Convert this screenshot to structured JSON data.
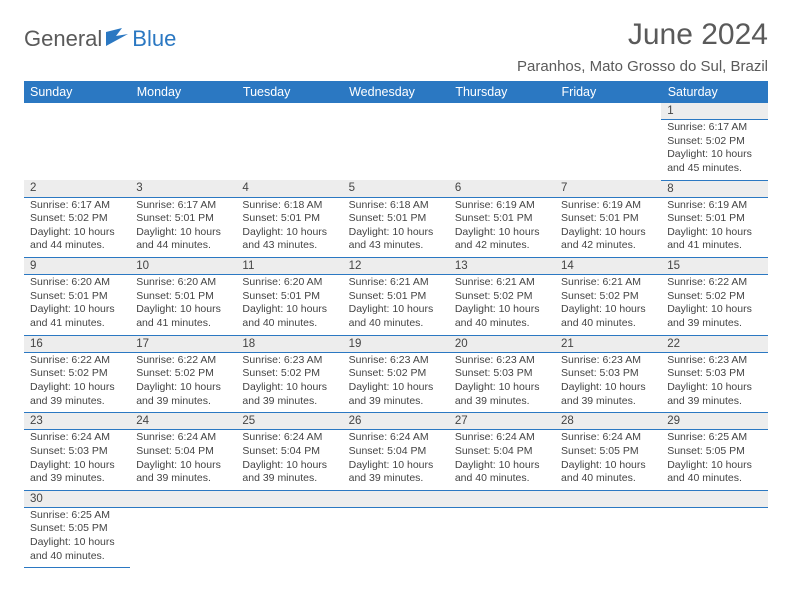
{
  "logo": {
    "part1": "General",
    "part2": "Blue"
  },
  "title": "June 2024",
  "location": "Paranhos, Mato Grosso do Sul, Brazil",
  "day_headers": [
    "Sunday",
    "Monday",
    "Tuesday",
    "Wednesday",
    "Thursday",
    "Friday",
    "Saturday"
  ],
  "colors": {
    "header_bg": "#2b78c2",
    "header_fg": "#ffffff",
    "rule": "#2b78c2",
    "daynum_bg": "#ededed",
    "text": "#444444",
    "title": "#5a5a5a"
  },
  "weeks": [
    [
      null,
      null,
      null,
      null,
      null,
      null,
      {
        "n": "1",
        "sunrise": "Sunrise: 6:17 AM",
        "sunset": "Sunset: 5:02 PM",
        "dl1": "Daylight: 10 hours",
        "dl2": "and 45 minutes."
      }
    ],
    [
      {
        "n": "2",
        "sunrise": "Sunrise: 6:17 AM",
        "sunset": "Sunset: 5:02 PM",
        "dl1": "Daylight: 10 hours",
        "dl2": "and 44 minutes."
      },
      {
        "n": "3",
        "sunrise": "Sunrise: 6:17 AM",
        "sunset": "Sunset: 5:01 PM",
        "dl1": "Daylight: 10 hours",
        "dl2": "and 44 minutes."
      },
      {
        "n": "4",
        "sunrise": "Sunrise: 6:18 AM",
        "sunset": "Sunset: 5:01 PM",
        "dl1": "Daylight: 10 hours",
        "dl2": "and 43 minutes."
      },
      {
        "n": "5",
        "sunrise": "Sunrise: 6:18 AM",
        "sunset": "Sunset: 5:01 PM",
        "dl1": "Daylight: 10 hours",
        "dl2": "and 43 minutes."
      },
      {
        "n": "6",
        "sunrise": "Sunrise: 6:19 AM",
        "sunset": "Sunset: 5:01 PM",
        "dl1": "Daylight: 10 hours",
        "dl2": "and 42 minutes."
      },
      {
        "n": "7",
        "sunrise": "Sunrise: 6:19 AM",
        "sunset": "Sunset: 5:01 PM",
        "dl1": "Daylight: 10 hours",
        "dl2": "and 42 minutes."
      },
      {
        "n": "8",
        "sunrise": "Sunrise: 6:19 AM",
        "sunset": "Sunset: 5:01 PM",
        "dl1": "Daylight: 10 hours",
        "dl2": "and 41 minutes."
      }
    ],
    [
      {
        "n": "9",
        "sunrise": "Sunrise: 6:20 AM",
        "sunset": "Sunset: 5:01 PM",
        "dl1": "Daylight: 10 hours",
        "dl2": "and 41 minutes."
      },
      {
        "n": "10",
        "sunrise": "Sunrise: 6:20 AM",
        "sunset": "Sunset: 5:01 PM",
        "dl1": "Daylight: 10 hours",
        "dl2": "and 41 minutes."
      },
      {
        "n": "11",
        "sunrise": "Sunrise: 6:20 AM",
        "sunset": "Sunset: 5:01 PM",
        "dl1": "Daylight: 10 hours",
        "dl2": "and 40 minutes."
      },
      {
        "n": "12",
        "sunrise": "Sunrise: 6:21 AM",
        "sunset": "Sunset: 5:01 PM",
        "dl1": "Daylight: 10 hours",
        "dl2": "and 40 minutes."
      },
      {
        "n": "13",
        "sunrise": "Sunrise: 6:21 AM",
        "sunset": "Sunset: 5:02 PM",
        "dl1": "Daylight: 10 hours",
        "dl2": "and 40 minutes."
      },
      {
        "n": "14",
        "sunrise": "Sunrise: 6:21 AM",
        "sunset": "Sunset: 5:02 PM",
        "dl1": "Daylight: 10 hours",
        "dl2": "and 40 minutes."
      },
      {
        "n": "15",
        "sunrise": "Sunrise: 6:22 AM",
        "sunset": "Sunset: 5:02 PM",
        "dl1": "Daylight: 10 hours",
        "dl2": "and 39 minutes."
      }
    ],
    [
      {
        "n": "16",
        "sunrise": "Sunrise: 6:22 AM",
        "sunset": "Sunset: 5:02 PM",
        "dl1": "Daylight: 10 hours",
        "dl2": "and 39 minutes."
      },
      {
        "n": "17",
        "sunrise": "Sunrise: 6:22 AM",
        "sunset": "Sunset: 5:02 PM",
        "dl1": "Daylight: 10 hours",
        "dl2": "and 39 minutes."
      },
      {
        "n": "18",
        "sunrise": "Sunrise: 6:23 AM",
        "sunset": "Sunset: 5:02 PM",
        "dl1": "Daylight: 10 hours",
        "dl2": "and 39 minutes."
      },
      {
        "n": "19",
        "sunrise": "Sunrise: 6:23 AM",
        "sunset": "Sunset: 5:02 PM",
        "dl1": "Daylight: 10 hours",
        "dl2": "and 39 minutes."
      },
      {
        "n": "20",
        "sunrise": "Sunrise: 6:23 AM",
        "sunset": "Sunset: 5:03 PM",
        "dl1": "Daylight: 10 hours",
        "dl2": "and 39 minutes."
      },
      {
        "n": "21",
        "sunrise": "Sunrise: 6:23 AM",
        "sunset": "Sunset: 5:03 PM",
        "dl1": "Daylight: 10 hours",
        "dl2": "and 39 minutes."
      },
      {
        "n": "22",
        "sunrise": "Sunrise: 6:23 AM",
        "sunset": "Sunset: 5:03 PM",
        "dl1": "Daylight: 10 hours",
        "dl2": "and 39 minutes."
      }
    ],
    [
      {
        "n": "23",
        "sunrise": "Sunrise: 6:24 AM",
        "sunset": "Sunset: 5:03 PM",
        "dl1": "Daylight: 10 hours",
        "dl2": "and 39 minutes."
      },
      {
        "n": "24",
        "sunrise": "Sunrise: 6:24 AM",
        "sunset": "Sunset: 5:04 PM",
        "dl1": "Daylight: 10 hours",
        "dl2": "and 39 minutes."
      },
      {
        "n": "25",
        "sunrise": "Sunrise: 6:24 AM",
        "sunset": "Sunset: 5:04 PM",
        "dl1": "Daylight: 10 hours",
        "dl2": "and 39 minutes."
      },
      {
        "n": "26",
        "sunrise": "Sunrise: 6:24 AM",
        "sunset": "Sunset: 5:04 PM",
        "dl1": "Daylight: 10 hours",
        "dl2": "and 39 minutes."
      },
      {
        "n": "27",
        "sunrise": "Sunrise: 6:24 AM",
        "sunset": "Sunset: 5:04 PM",
        "dl1": "Daylight: 10 hours",
        "dl2": "and 40 minutes."
      },
      {
        "n": "28",
        "sunrise": "Sunrise: 6:24 AM",
        "sunset": "Sunset: 5:05 PM",
        "dl1": "Daylight: 10 hours",
        "dl2": "and 40 minutes."
      },
      {
        "n": "29",
        "sunrise": "Sunrise: 6:25 AM",
        "sunset": "Sunset: 5:05 PM",
        "dl1": "Daylight: 10 hours",
        "dl2": "and 40 minutes."
      }
    ],
    [
      {
        "n": "30",
        "sunrise": "Sunrise: 6:25 AM",
        "sunset": "Sunset: 5:05 PM",
        "dl1": "Daylight: 10 hours",
        "dl2": "and 40 minutes."
      },
      null,
      null,
      null,
      null,
      null,
      null
    ]
  ]
}
